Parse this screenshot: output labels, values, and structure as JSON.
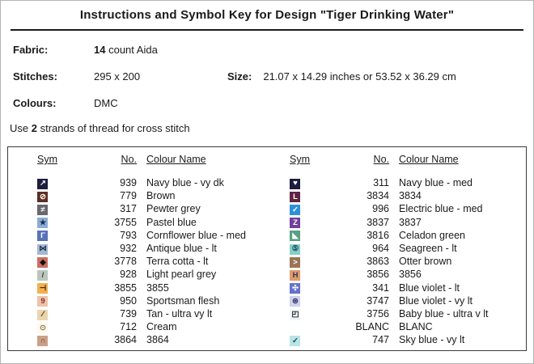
{
  "title": "Instructions and Symbol Key for Design \"Tiger Drinking Water\"",
  "info": {
    "fabric_label": "Fabric:",
    "fabric_bold": "14",
    "fabric_rest": "count Aida",
    "stitches_label": "Stitches:",
    "stitches_value": "295 x 200",
    "size_label": "Size:",
    "size_value": "21.07 x 14.29 inches or 53.52 x 36.29 cm",
    "colours_label": "Colours:",
    "colours_value": "DMC",
    "strands_prefix": "Use",
    "strands_bold": "2",
    "strands_suffix": "strands of thread for cross stitch"
  },
  "key": {
    "headers": {
      "sym": "Sym",
      "no": "No.",
      "name": "Colour Name"
    },
    "left": [
      {
        "icon": "arrow-ne-icon",
        "glyph": "↗",
        "bg": "#1d1d3d",
        "fg": "#ffffff",
        "no": "939",
        "name": "Navy blue - vy dk"
      },
      {
        "icon": "circle-slash-icon",
        "glyph": "⊘",
        "bg": "#5d2f23",
        "fg": "#ffffff",
        "no": "779",
        "name": "Brown"
      },
      {
        "icon": "not-equal-icon",
        "glyph": "≠",
        "bg": "#68686f",
        "fg": "#ffffff",
        "no": "317",
        "name": "Pewter grey"
      },
      {
        "icon": "star-icon",
        "glyph": "★",
        "bg": "#8badd6",
        "fg": "#1d2d50",
        "no": "3755",
        "name": "Pastel blue"
      },
      {
        "icon": "gamma-corner-icon",
        "glyph": "Γ",
        "bg": "#5973b9",
        "fg": "#ffffff",
        "no": "793",
        "name": "Cornflower blue - med"
      },
      {
        "icon": "bowtie-icon",
        "glyph": "⋈",
        "bg": "#a3b9ce",
        "fg": "#1d2d50",
        "no": "932",
        "name": "Antique blue - lt"
      },
      {
        "icon": "diamond-icon",
        "glyph": "◆",
        "bg": "#ca6f5e",
        "fg": "#111111",
        "no": "3778",
        "name": "Terra cotta - lt"
      },
      {
        "icon": "slash-icon",
        "glyph": "/",
        "bg": "#bcc6bd",
        "fg": "#2d3a3a",
        "no": "928",
        "name": "Light pearl grey"
      },
      {
        "icon": "right-tack-icon",
        "glyph": "⊣",
        "bg": "#f2b14e",
        "fg": "#1a1a1a",
        "no": "3855",
        "name": "3855"
      },
      {
        "icon": "digit-nine-icon",
        "glyph": "9",
        "bg": "#eec3a8",
        "fg": "#8b2f2f",
        "no": "950",
        "name": "Sportsman flesh"
      },
      {
        "icon": "double-slash-icon",
        "glyph": "∕∕",
        "bg": "#e9d6b0",
        "fg": "#7a5a33",
        "no": "739",
        "name": "Tan - ultra vy lt"
      },
      {
        "icon": "circled-dot-icon",
        "glyph": "⊙",
        "bg": "#fdf9ee",
        "fg": "#8a7a4a",
        "no": "712",
        "name": "Cream"
      },
      {
        "icon": "arch-icon",
        "glyph": "∩",
        "bg": "#cba089",
        "fg": "#5d3a28",
        "no": "3864",
        "name": "3864"
      }
    ],
    "right": [
      {
        "icon": "heart-icon",
        "glyph": "♥",
        "bg": "#1d1d40",
        "fg": "#ffffff",
        "no": "311",
        "name": "Navy blue - med"
      },
      {
        "icon": "letter-l-icon",
        "glyph": "L",
        "bg": "#602443",
        "fg": "#ffffff",
        "no": "3834",
        "name": "3834"
      },
      {
        "icon": "check-icon",
        "glyph": "✓",
        "bg": "#2f90d9",
        "fg": "#ffffff",
        "no": "996",
        "name": "Electric blue - med"
      },
      {
        "icon": "letter-z-icon",
        "glyph": "Z",
        "bg": "#70409a",
        "fg": "#ffffff",
        "no": "3837",
        "name": "3837"
      },
      {
        "icon": "triangle-corner-icon",
        "glyph": "◣",
        "bg": "#5aa184",
        "fg": "#ffffff",
        "no": "3816",
        "name": "Celadon green"
      },
      {
        "icon": "circled-five-icon",
        "glyph": "⑤",
        "bg": "#82d2c7",
        "fg": "#1d3c5c",
        "no": "964",
        "name": "Seagreen - lt"
      },
      {
        "icon": "greater-than-icon",
        "glyph": ">",
        "bg": "#9b7455",
        "fg": "#ffffff",
        "no": "3863",
        "name": "Otter brown"
      },
      {
        "icon": "letter-h-icon",
        "glyph": "H",
        "bg": "#e29a69",
        "fg": "#243a5e",
        "no": "3856",
        "name": "3856"
      },
      {
        "icon": "cross-star-icon",
        "glyph": "✣",
        "bg": "#6473ca",
        "fg": "#ffffff",
        "no": "341",
        "name": "Blue violet - lt"
      },
      {
        "icon": "circled-asterisk-icon",
        "glyph": "⊛",
        "bg": "#cdd1ee",
        "fg": "#3c3c6e",
        "no": "3747",
        "name": "Blue violet - vy lt"
      },
      {
        "icon": "square-corners-icon",
        "glyph": "◰",
        "bg": "#eff5f9",
        "fg": "#111111",
        "no": "3756",
        "name": "Baby blue - ultra v lt"
      },
      {
        "icon": "blank-icon",
        "glyph": "",
        "bg": "#ffffff",
        "fg": "#ffffff",
        "no": "BLANC",
        "name": "BLANC"
      },
      {
        "icon": "check-icon",
        "glyph": "✓",
        "bg": "#b7e4e4",
        "fg": "#1d3c5c",
        "no": "747",
        "name": "Sky blue - vy lt"
      }
    ]
  }
}
